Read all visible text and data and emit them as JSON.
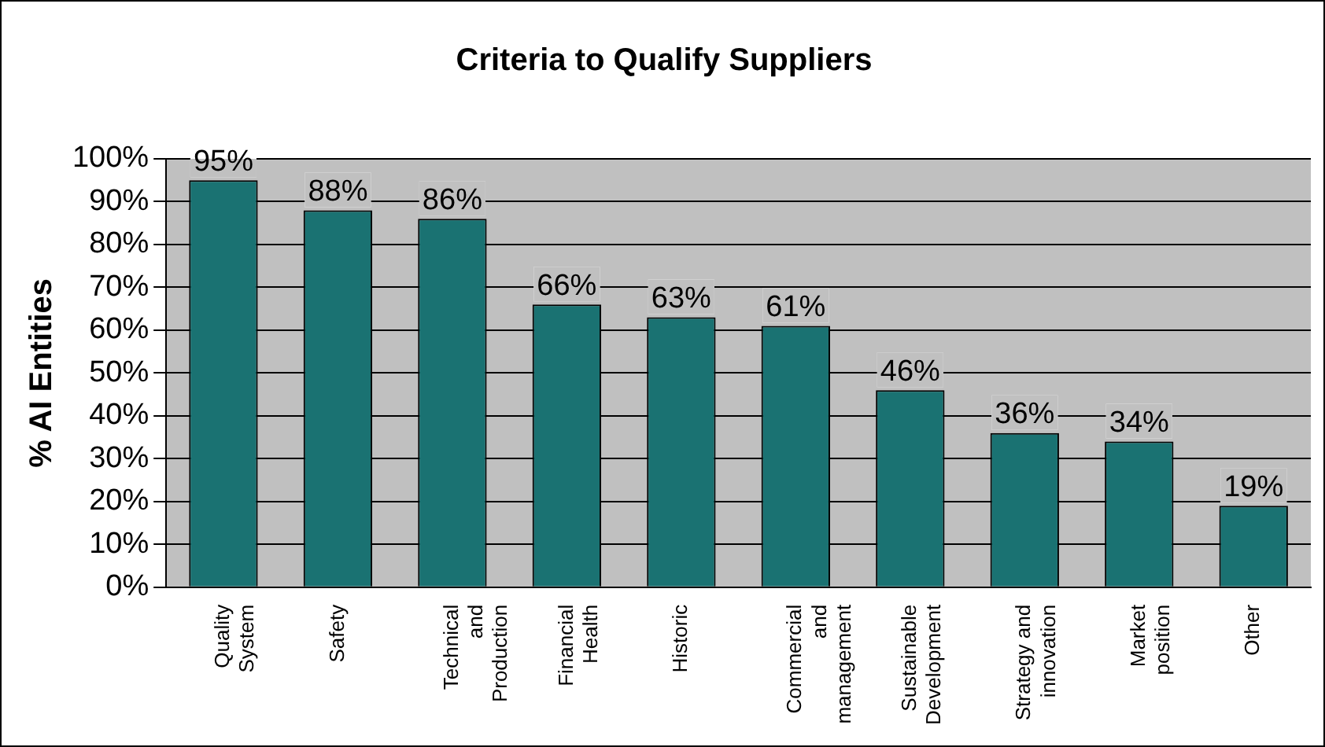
{
  "chart_data": {
    "type": "bar",
    "title": "Criteria to Qualify Suppliers",
    "ylabel": "% AI Entities",
    "categories": [
      "Quality System",
      "Safety",
      "Technical and Production",
      "Financial Health",
      "Historic",
      "Commercial and management",
      "Sustainable Development",
      "Strategy and innovation",
      "Market position",
      "Other"
    ],
    "values": [
      95,
      88,
      86,
      66,
      63,
      61,
      46,
      36,
      34,
      19
    ],
    "value_labels": [
      "95%",
      "88%",
      "86%",
      "66%",
      "63%",
      "61%",
      "46%",
      "36%",
      "34%",
      "19%"
    ],
    "color": "#1a7272",
    "ylim": [
      0,
      100
    ],
    "yticks": [
      {
        "value": 0,
        "label": "0%"
      },
      {
        "value": 10,
        "label": "10%"
      },
      {
        "value": 20,
        "label": "20%"
      },
      {
        "value": 30,
        "label": "30%"
      },
      {
        "value": 40,
        "label": "40%"
      },
      {
        "value": 50,
        "label": "50%"
      },
      {
        "value": 60,
        "label": "60%"
      },
      {
        "value": 70,
        "label": "70%"
      },
      {
        "value": 80,
        "label": "80%"
      },
      {
        "value": 90,
        "label": "90%"
      },
      {
        "value": 100,
        "label": "100%"
      }
    ],
    "grid": "y",
    "legend": false
  }
}
